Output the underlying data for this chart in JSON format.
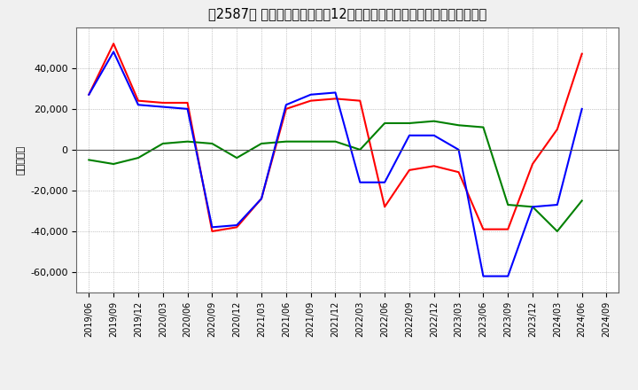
{
  "title": "[2587]  キャッシュフローの12か月移動合計の対前年同期増減額の推移",
  "title2": "［2587］ キャッシュフローの12か月移動合計の対前年同期増減額の推移",
  "ylabel": "（百万円）",
  "background_color": "#f0f0f0",
  "plot_bg_color": "#ffffff",
  "grid_color": "#999999",
  "line_colors": {
    "operating": "#ff0000",
    "investing": "#008000",
    "free": "#0000ff"
  },
  "ylim": [
    -70000,
    60000
  ],
  "yticks": [
    -60000,
    -40000,
    -20000,
    0,
    20000,
    40000
  ],
  "dates": [
    "2019/06",
    "2019/09",
    "2019/12",
    "2020/03",
    "2020/06",
    "2020/09",
    "2020/12",
    "2021/03",
    "2021/06",
    "2021/09",
    "2021/12",
    "2022/03",
    "2022/06",
    "2022/09",
    "2022/12",
    "2023/03",
    "2023/06",
    "2023/09",
    "2023/12",
    "2024/03",
    "2024/06",
    "2024/09"
  ],
  "operating_cf": [
    27000,
    52000,
    24000,
    23000,
    23000,
    -40000,
    -38000,
    -24000,
    20000,
    24000,
    25000,
    24000,
    -28000,
    -10000,
    -8000,
    -11000,
    -39000,
    -39000,
    -7000,
    10000,
    47000,
    null
  ],
  "investing_cf": [
    -5000,
    -7000,
    -4000,
    3000,
    4000,
    3000,
    -4000,
    3000,
    4000,
    4000,
    4000,
    0,
    13000,
    13000,
    14000,
    12000,
    11000,
    -27000,
    -28000,
    -40000,
    -25000,
    null
  ],
  "free_cf": [
    27000,
    48000,
    22000,
    21000,
    20000,
    -38000,
    -37000,
    -24000,
    22000,
    27000,
    28000,
    -16000,
    -16000,
    7000,
    7000,
    0,
    -62000,
    -62000,
    -28000,
    -27000,
    20000,
    null
  ]
}
